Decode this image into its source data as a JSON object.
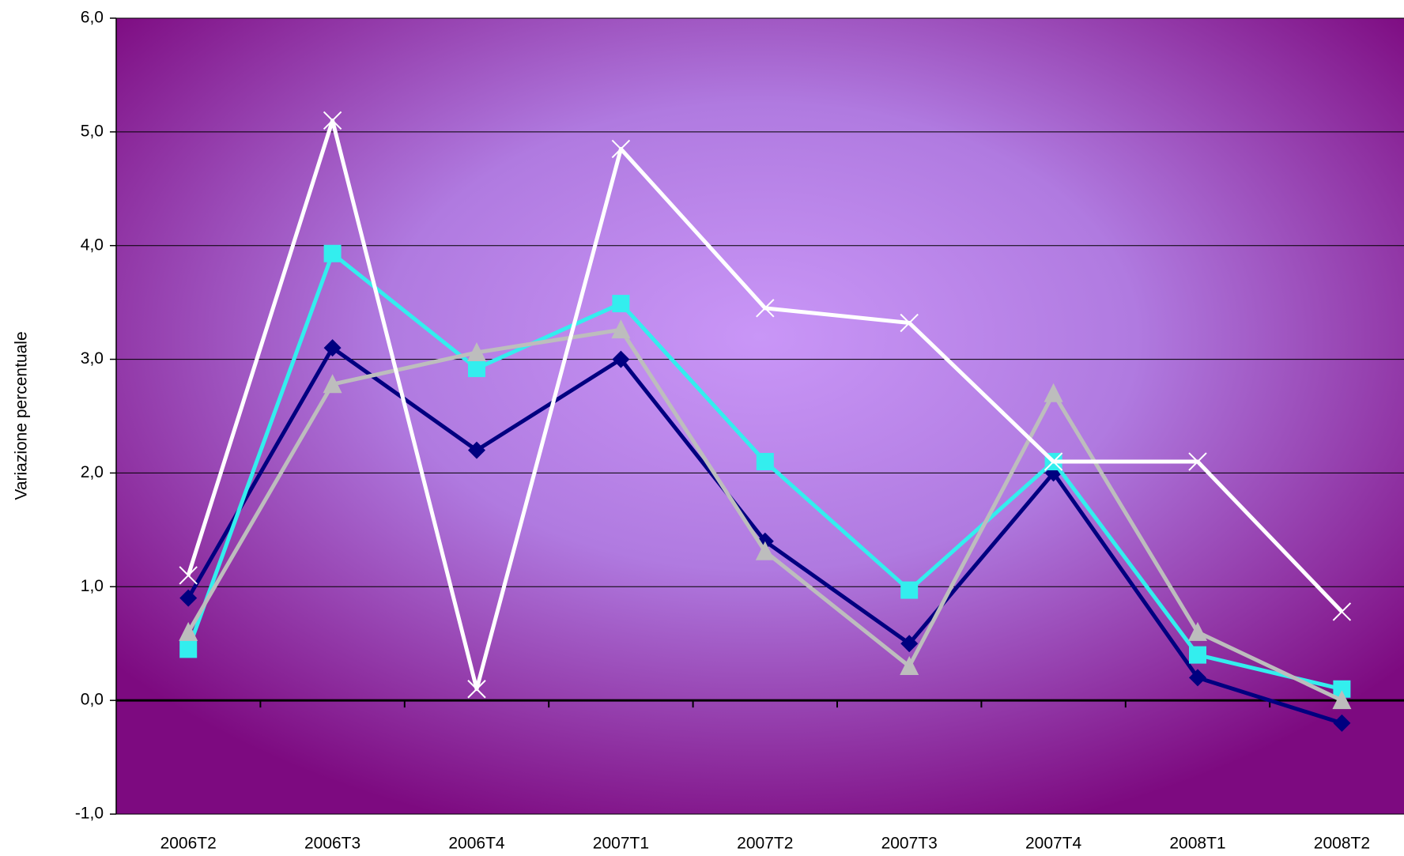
{
  "chart_data": {
    "type": "line",
    "y_label": "Variazione percentuale",
    "categories": [
      "2006T2",
      "2006T3",
      "2006T4",
      "2007T1",
      "2007T2",
      "2007T3",
      "2007T4",
      "2008T1",
      "2008T2"
    ],
    "series": [
      {
        "color": "#000080",
        "marker": "diamond",
        "values": [
          0.9,
          3.1,
          2.2,
          3.0,
          1.4,
          0.5,
          2.0,
          0.2,
          -0.2
        ]
      },
      {
        "color": "#33eeee",
        "marker": "square",
        "values": [
          0.45,
          3.93,
          2.92,
          3.49,
          2.1,
          0.97,
          2.1,
          0.4,
          0.1
        ]
      },
      {
        "color": "#bdbdbd",
        "marker": "triangle",
        "values": [
          0.6,
          2.78,
          3.06,
          3.26,
          1.31,
          0.3,
          2.7,
          0.6,
          0.0
        ]
      },
      {
        "color": "#ffffff",
        "marker": "x",
        "values": [
          1.1,
          5.1,
          0.1,
          4.85,
          3.45,
          3.32,
          2.1,
          2.1,
          0.78
        ]
      }
    ],
    "ylim": [
      -1,
      6
    ],
    "yticks": [
      {
        "value": -1,
        "label": "-1,0"
      },
      {
        "value": 0,
        "label": "0,0"
      },
      {
        "value": 1,
        "label": "1,0"
      },
      {
        "value": 2,
        "label": "2,0"
      },
      {
        "value": 3,
        "label": "3,0"
      },
      {
        "value": 4,
        "label": "4,0"
      },
      {
        "value": 5,
        "label": "5,0"
      },
      {
        "value": 6,
        "label": "6,0"
      }
    ],
    "grid": true
  }
}
